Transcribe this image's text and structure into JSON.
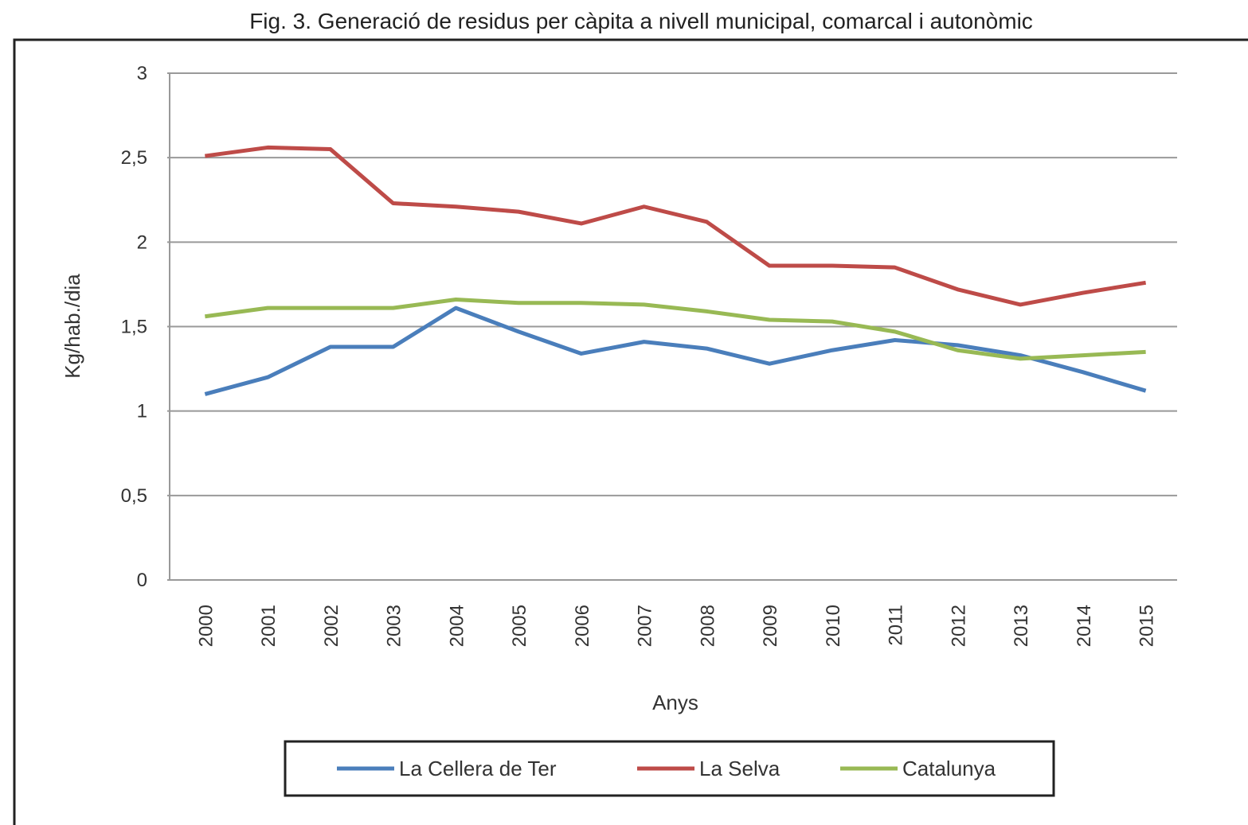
{
  "chart_data": {
    "type": "line",
    "title": "Fig. 3. Generació de residus per càpita a nivell municipal, comarcal i autonòmic",
    "y_label": "Kg/hab./dia",
    "x_label": "Anys",
    "categories": [
      "2000",
      "2001",
      "2002",
      "2003",
      "2004",
      "2005",
      "2006",
      "2007",
      "2008",
      "2009",
      "2010",
      "2011",
      "2012",
      "2013",
      "2014",
      "2015"
    ],
    "series": [
      {
        "name": "La Cellera de Ter",
        "color": "#4a7ebb",
        "values": [
          1.1,
          1.2,
          1.38,
          1.38,
          1.61,
          1.47,
          1.34,
          1.41,
          1.37,
          1.28,
          1.36,
          1.42,
          1.39,
          1.33,
          1.23,
          1.12
        ]
      },
      {
        "name": "La Selva",
        "color": "#be4b48",
        "values": [
          2.51,
          2.56,
          2.55,
          2.23,
          2.21,
          2.18,
          2.11,
          2.21,
          2.12,
          1.86,
          1.86,
          1.85,
          1.72,
          1.63,
          1.7,
          1.76
        ]
      },
      {
        "name": "Catalunya",
        "color": "#98b954",
        "values": [
          1.56,
          1.61,
          1.61,
          1.61,
          1.66,
          1.64,
          1.64,
          1.63,
          1.59,
          1.54,
          1.53,
          1.47,
          1.36,
          1.31,
          1.33,
          1.35
        ]
      }
    ],
    "ylim": [
      0,
      3
    ],
    "yticks": [
      0,
      {
        "value": 0.5,
        "label": "0,5"
      },
      1,
      {
        "value": 1.5,
        "label": "1,5"
      },
      2,
      {
        "value": 2.5,
        "label": "2,5"
      },
      3
    ],
    "grid": true,
    "legend": "bottom"
  }
}
